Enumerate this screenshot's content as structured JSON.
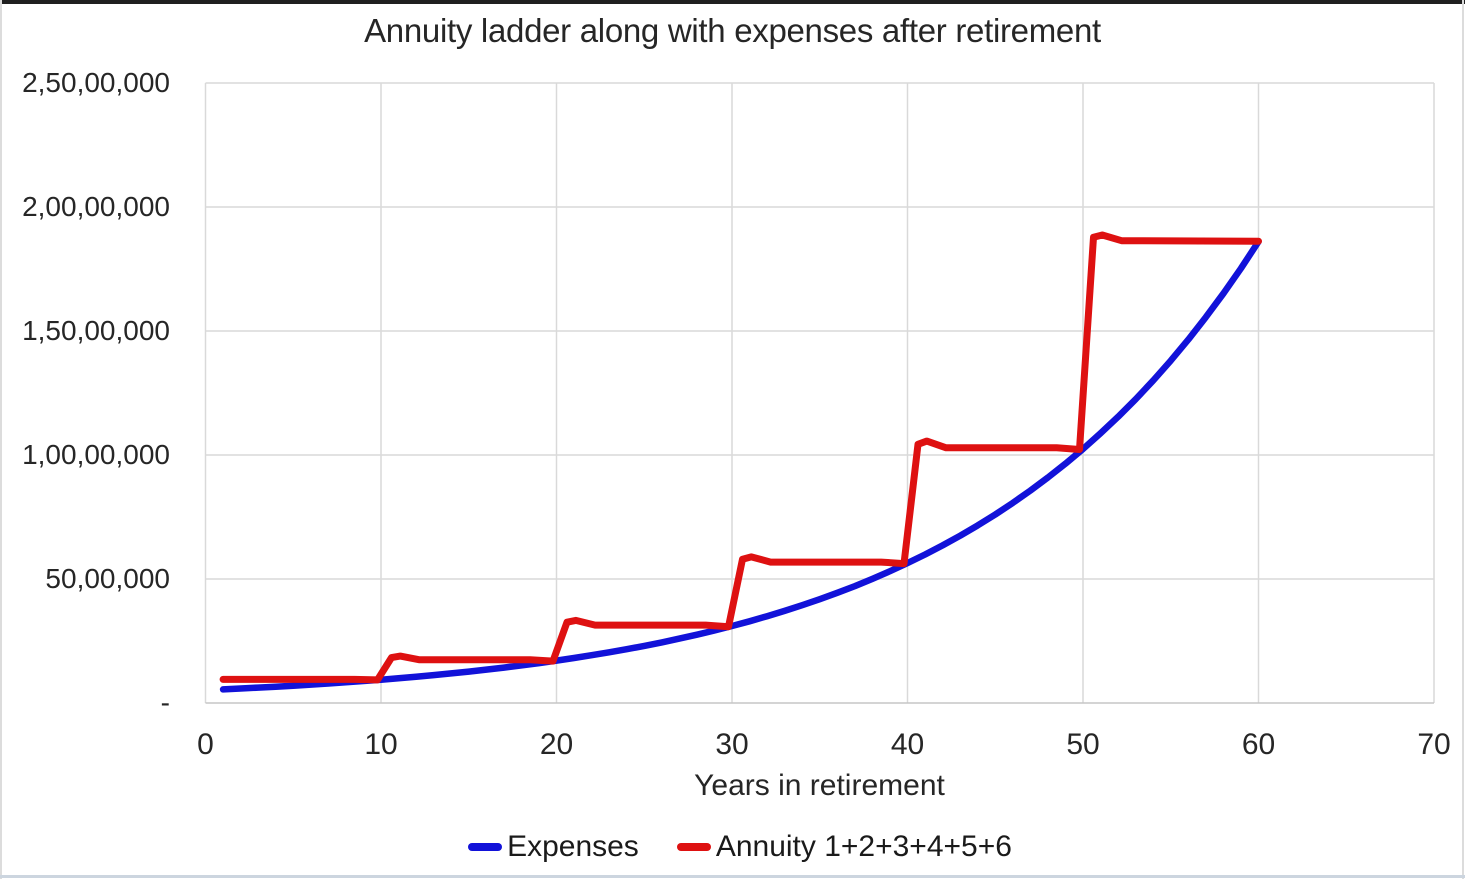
{
  "frame": {
    "background": "#ffffff",
    "top_border_color": "#1f1f1f",
    "bottom_border_color": "#ccd5df",
    "side_border_color": "#dcdcdc"
  },
  "chart_data": {
    "type": "line",
    "title": "Annuity ladder along with expenses after retirement",
    "xlabel": "Years in retirement",
    "ylabel": "",
    "xlim": [
      0,
      70
    ],
    "ylim": [
      0,
      25000000
    ],
    "grid": true,
    "gridline_color": "#d9d9d9",
    "axis_line_color": "#c6c6c6",
    "legend_position": "bottom",
    "x_ticks": [
      {
        "value": 0,
        "label": "0"
      },
      {
        "value": 10,
        "label": "10"
      },
      {
        "value": 20,
        "label": "20"
      },
      {
        "value": 30,
        "label": "30"
      },
      {
        "value": 40,
        "label": "40"
      },
      {
        "value": 50,
        "label": "50"
      },
      {
        "value": 60,
        "label": "60"
      },
      {
        "value": 70,
        "label": "70"
      }
    ],
    "y_ticks": [
      {
        "value": 0,
        "label": "-"
      },
      {
        "value": 5000000,
        "label": "50,00,000"
      },
      {
        "value": 10000000,
        "label": "1,00,00,000"
      },
      {
        "value": 15000000,
        "label": "1,50,00,000"
      },
      {
        "value": 20000000,
        "label": "2,00,00,000"
      },
      {
        "value": 25000000,
        "label": "2,50,00,000"
      }
    ],
    "series": [
      {
        "name": "Expenses",
        "color": "#1212d9",
        "line_width": 6.5,
        "points": [
          [
            1,
            550000
          ],
          [
            2,
            584000
          ],
          [
            3,
            620000
          ],
          [
            4,
            658000
          ],
          [
            5,
            698000
          ],
          [
            6,
            741000
          ],
          [
            7,
            787000
          ],
          [
            8,
            835000
          ],
          [
            9,
            887000
          ],
          [
            10,
            941000
          ],
          [
            11,
            999000
          ],
          [
            12,
            1060000
          ],
          [
            13,
            1126000
          ],
          [
            14,
            1195000
          ],
          [
            15,
            1268000
          ],
          [
            16,
            1346000
          ],
          [
            17,
            1429000
          ],
          [
            18,
            1517000
          ],
          [
            19,
            1610000
          ],
          [
            20,
            1709000
          ],
          [
            21,
            1815000
          ],
          [
            22,
            1926000
          ],
          [
            23,
            2045000
          ],
          [
            24,
            2170000
          ],
          [
            25,
            2304000
          ],
          [
            26,
            2445000
          ],
          [
            27,
            2596000
          ],
          [
            28,
            2756000
          ],
          [
            29,
            2925000
          ],
          [
            30,
            3105000
          ],
          [
            31,
            3296000
          ],
          [
            32,
            3499000
          ],
          [
            33,
            3714000
          ],
          [
            34,
            3942000
          ],
          [
            35,
            4184000
          ],
          [
            36,
            4442000
          ],
          [
            37,
            4715000
          ],
          [
            38,
            5005000
          ],
          [
            39,
            5313000
          ],
          [
            40,
            5640000
          ],
          [
            41,
            5986000
          ],
          [
            42,
            6354000
          ],
          [
            43,
            6745000
          ],
          [
            44,
            7160000
          ],
          [
            45,
            7600000
          ],
          [
            46,
            8068000
          ],
          [
            47,
            8564000
          ],
          [
            48,
            9091000
          ],
          [
            49,
            9650000
          ],
          [
            50,
            10243000
          ],
          [
            51,
            10873000
          ],
          [
            52,
            11542000
          ],
          [
            53,
            12252000
          ],
          [
            54,
            13005000
          ],
          [
            55,
            13805000
          ],
          [
            56,
            14654000
          ],
          [
            57,
            15555000
          ],
          [
            58,
            16512000
          ],
          [
            59,
            17528000
          ],
          [
            60,
            18605000
          ]
        ]
      },
      {
        "name": "Annuity 1+2+3+4+5+6",
        "color": "#de1111",
        "line_width": 7,
        "points": [
          [
            1,
            950000
          ],
          [
            8.5,
            950000
          ],
          [
            9.8,
            930000
          ],
          [
            10.6,
            1830000
          ],
          [
            11.1,
            1890000
          ],
          [
            12.2,
            1740000
          ],
          [
            18.5,
            1740000
          ],
          [
            19.8,
            1690000
          ],
          [
            20.6,
            3260000
          ],
          [
            21.1,
            3330000
          ],
          [
            22.2,
            3140000
          ],
          [
            28.5,
            3140000
          ],
          [
            29.8,
            3075000
          ],
          [
            30.6,
            5800000
          ],
          [
            31.1,
            5890000
          ],
          [
            32.2,
            5680000
          ],
          [
            38.5,
            5680000
          ],
          [
            39.8,
            5620000
          ],
          [
            40.6,
            10430000
          ],
          [
            41.1,
            10560000
          ],
          [
            42.2,
            10290000
          ],
          [
            48.5,
            10290000
          ],
          [
            49.8,
            10220000
          ],
          [
            50.6,
            18780000
          ],
          [
            51.1,
            18870000
          ],
          [
            52.2,
            18640000
          ],
          [
            60,
            18620000
          ]
        ]
      }
    ]
  }
}
